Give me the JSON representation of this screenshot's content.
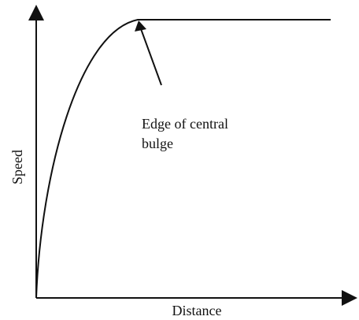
{
  "diagram": {
    "x_axis_label": "Distance",
    "y_axis_label": "Speed",
    "annotation": {
      "lines": [
        "Edge of central",
        "bulge"
      ]
    }
  }
}
